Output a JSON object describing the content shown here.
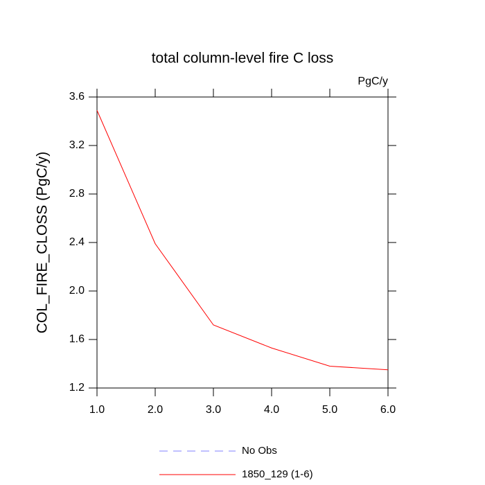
{
  "chart_data": {
    "type": "line",
    "title": "total column-level fire C loss",
    "units": "PgC/y",
    "y_label": "COL_FIRE_CLOSS  (PgC/y)",
    "x": [
      1,
      2,
      3,
      4,
      5,
      6
    ],
    "series": [
      {
        "name": "No Obs",
        "color": "#8080ff",
        "dash": "dashed",
        "values": [
          null,
          null,
          null,
          null,
          null,
          null
        ]
      },
      {
        "name": "1850_129 (1-6)",
        "color": "#ff0000",
        "dash": "solid",
        "values": [
          3.49,
          2.39,
          1.72,
          1.53,
          1.38,
          1.35
        ]
      }
    ],
    "xlim": [
      1,
      6
    ],
    "xticks": [
      {
        "value": 1,
        "label": "1.0"
      },
      {
        "value": 2,
        "label": "2.0"
      },
      {
        "value": 3,
        "label": "3.0"
      },
      {
        "value": 4,
        "label": "4.0"
      },
      {
        "value": 5,
        "label": "5.0"
      },
      {
        "value": 6,
        "label": "6.0"
      }
    ],
    "ylim": [
      1.2,
      3.6
    ],
    "yticks": [
      1.2,
      1.6,
      {
        "value": 2,
        "label": "2.0"
      },
      2.4,
      2.8,
      3.2,
      3.6
    ],
    "grid": false
  }
}
